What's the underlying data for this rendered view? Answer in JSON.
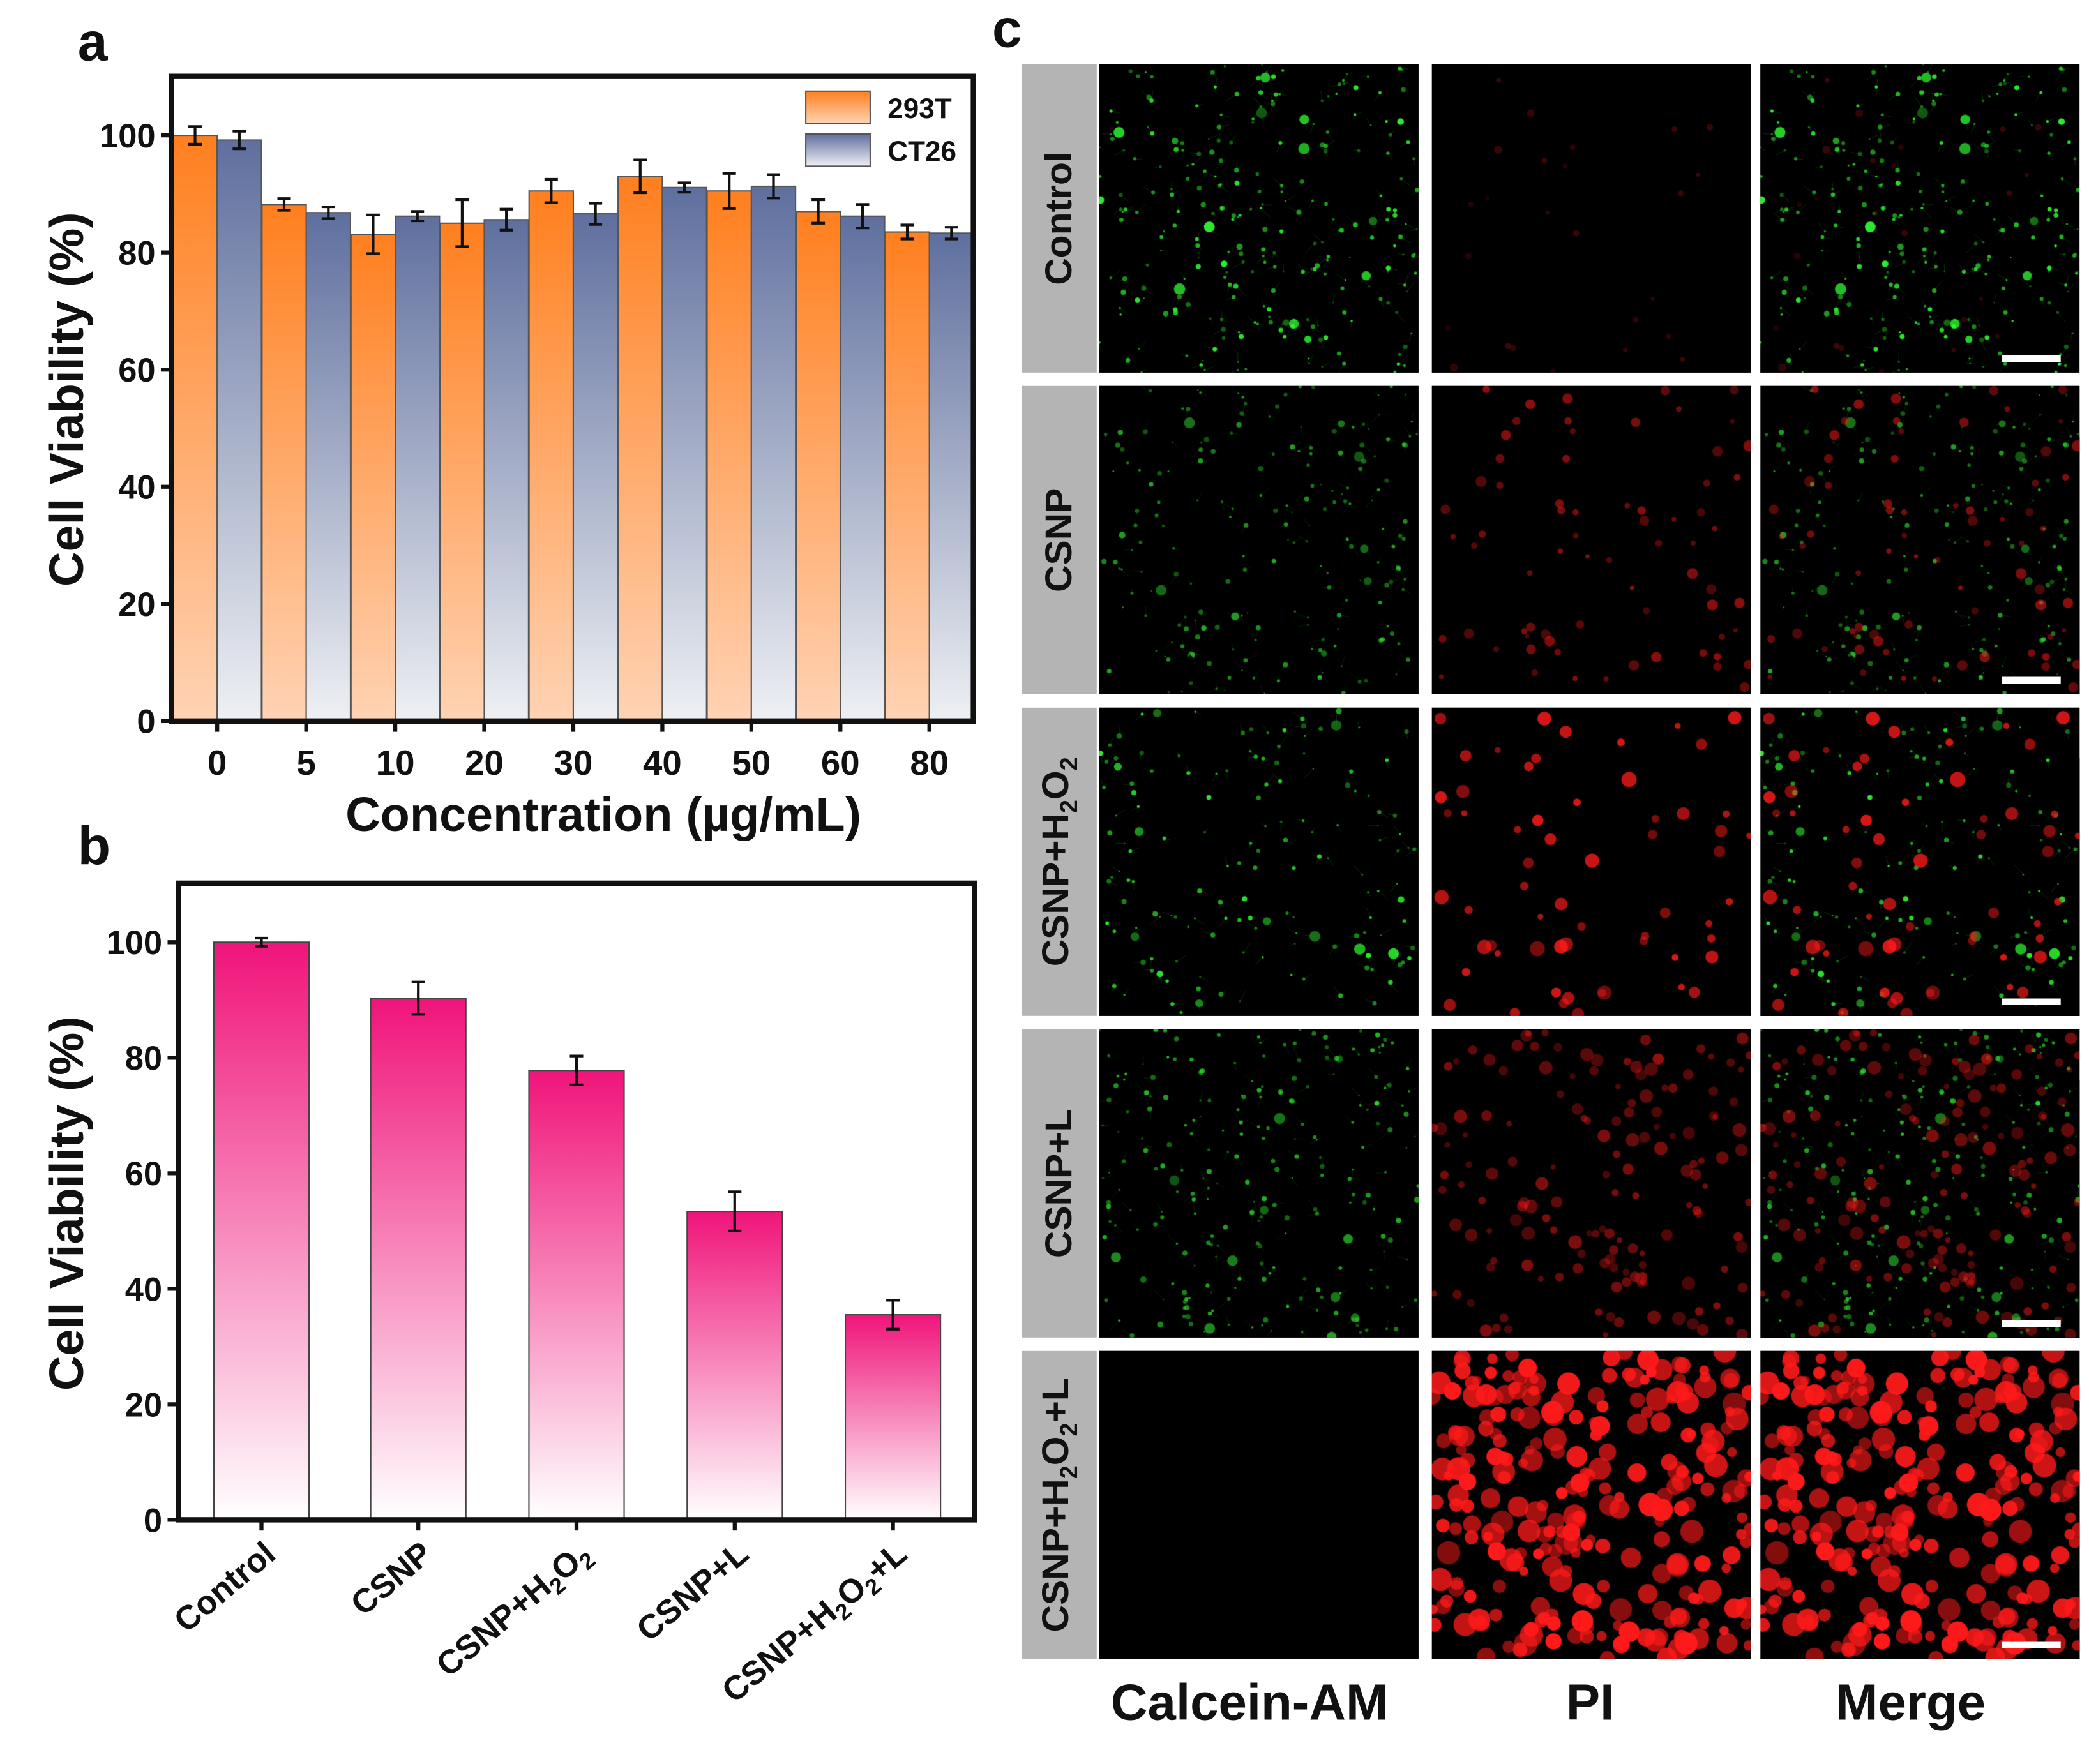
{
  "panel_labels": {
    "a": "a",
    "b": "b",
    "c": "c"
  },
  "chart_data": [
    {
      "type": "bar",
      "id": "a",
      "title": "",
      "xlabel": "Concentration (µg/mL)",
      "ylabel": "Cell Viability (%)",
      "ylim": [
        0,
        110
      ],
      "yticks": [
        "0",
        "20",
        "40",
        "60",
        "80",
        "100"
      ],
      "categories": [
        "0",
        "5",
        "10",
        "20",
        "30",
        "40",
        "50",
        "60",
        "80"
      ],
      "legend_position": "top-right",
      "series": [
        {
          "name": "293T",
          "color": "#ff7f1e",
          "values": [
            100,
            88.2,
            83.1,
            85.0,
            90.5,
            93.0,
            90.5,
            87.0,
            83.5
          ],
          "errors": [
            1.5,
            1.0,
            3.3,
            4.0,
            2.0,
            2.8,
            3.0,
            2.0,
            1.2
          ]
        },
        {
          "name": "CT26",
          "color": "#5f6f9e",
          "values": [
            99.2,
            86.8,
            86.2,
            85.6,
            86.6,
            91.1,
            91.3,
            86.2,
            83.3
          ],
          "errors": [
            1.5,
            1.0,
            0.8,
            1.8,
            1.8,
            0.8,
            2.0,
            2.0,
            1.0
          ]
        }
      ]
    },
    {
      "type": "bar",
      "id": "b",
      "title": "",
      "xlabel": "",
      "ylabel": "Cell Viability (%)",
      "ylim": [
        0,
        110
      ],
      "yticks": [
        "0",
        "20",
        "40",
        "60",
        "80",
        "100"
      ],
      "categories": [
        "Control",
        "CSNP",
        "CSNP+H2O2",
        "CSNP+L",
        "CSNP+H2O2+L"
      ],
      "category_parts": [
        [
          {
            "t": "Control"
          }
        ],
        [
          {
            "t": "CSNP"
          }
        ],
        [
          {
            "t": "CSNP+H"
          },
          {
            "sub": "2"
          },
          {
            "t": "O"
          },
          {
            "sub": "2"
          }
        ],
        [
          {
            "t": "CSNP+L"
          }
        ],
        [
          {
            "t": "CSNP+H"
          },
          {
            "sub": "2"
          },
          {
            "t": "O"
          },
          {
            "sub": "2"
          },
          {
            "t": "+L"
          }
        ]
      ],
      "series": [
        {
          "name": "Cell Viability",
          "color": "#f0147a",
          "values": [
            100,
            90.3,
            77.8,
            53.4,
            35.5
          ],
          "errors": [
            0.7,
            2.8,
            2.5,
            3.4,
            2.5
          ]
        }
      ]
    }
  ],
  "micrographs": {
    "columns": [
      "Calcein-AM",
      "PI",
      "Merge"
    ],
    "rows": [
      {
        "label_parts": [
          {
            "t": "Control"
          }
        ]
      },
      {
        "label_parts": [
          {
            "t": "CSNP"
          }
        ]
      },
      {
        "label_parts": [
          {
            "t": "CSNP+H"
          },
          {
            "sub": "2"
          },
          {
            "t": "O"
          },
          {
            "sub": "2"
          }
        ]
      },
      {
        "label_parts": [
          {
            "t": "CSNP+L"
          }
        ]
      },
      {
        "label_parts": [
          {
            "t": "CSNP+H"
          },
          {
            "sub": "2"
          },
          {
            "t": "O"
          },
          {
            "sub": "2"
          },
          {
            "t": "+L"
          }
        ]
      }
    ],
    "colors": {
      "live": "#2ee02e",
      "dead": "#ff1a1a",
      "label_strip": "#b4b4b4"
    }
  }
}
